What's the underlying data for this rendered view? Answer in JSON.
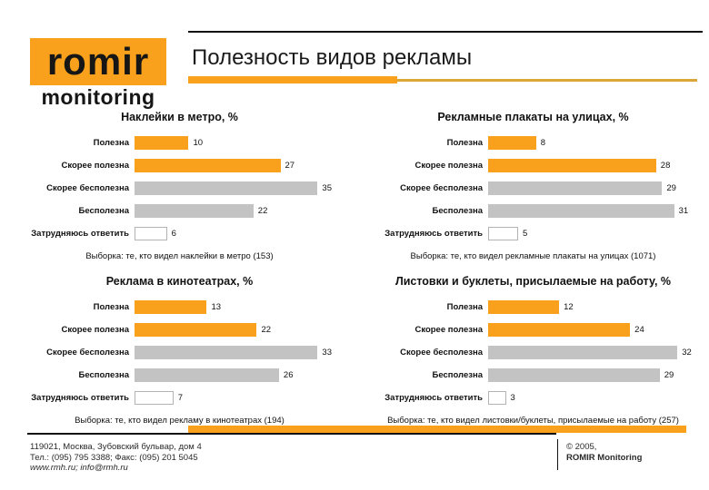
{
  "slide": {
    "logo": {
      "brand": "romir",
      "sub_brand": "monitoring"
    },
    "title": "Полезность видов рекламы",
    "theme": {
      "orange": "#F9A11C",
      "gray": "#C3C3C3",
      "white": "#FFFFFF",
      "text": "#1A1A1A"
    },
    "footer": {
      "address_line1": "119021, Москва, Зубовский бульвар, дом 4",
      "address_line2": "Тел.: (095) 795 3388; Факс: (095) 201 5045",
      "address_line3": "www.rmh.ru; info@rmh.ru",
      "copyright_line1": "© 2005,",
      "copyright_line2": "ROMIR Monitoring"
    }
  },
  "chart_data": [
    {
      "type": "bar",
      "orientation": "horizontal",
      "title": "Наклейки в метро, %",
      "categories": [
        "Полезна",
        "Скорее полезна",
        "Скорее бесполезна",
        "Бесполезна",
        "Затрудняюсь ответить"
      ],
      "values": [
        10,
        27,
        35,
        22,
        6
      ],
      "bar_colors": [
        "orange",
        "orange",
        "gray",
        "gray",
        "white"
      ],
      "xlim": [
        0,
        36.5
      ],
      "grid": false,
      "legend": false,
      "caption": "Выборка: те, кто видел наклейки в метро (153)"
    },
    {
      "type": "bar",
      "orientation": "horizontal",
      "title": "Рекламные плакаты на улицах, %",
      "categories": [
        "Полезна",
        "Скорее полезна",
        "Скорее бесполезна",
        "Бесполезна",
        "Затрудняюсь ответить"
      ],
      "values": [
        8,
        28,
        29,
        31,
        5
      ],
      "bar_colors": [
        "orange",
        "orange",
        "gray",
        "gray",
        "white"
      ],
      "xlim": [
        0,
        35
      ],
      "grid": false,
      "legend": false,
      "caption": "Выборка: те, кто видел рекламные плакаты на улицах (1071)"
    },
    {
      "type": "bar",
      "orientation": "horizontal",
      "title": "Реклама в кинотеатрах, %",
      "categories": [
        "Полезна",
        "Скорее полезна",
        "Скорее бесполезна",
        "Бесполезна",
        "Затрудняюсь ответить"
      ],
      "values": [
        13,
        22,
        33,
        26,
        7
      ],
      "bar_colors": [
        "orange",
        "orange",
        "gray",
        "gray",
        "white"
      ],
      "xlim": [
        0,
        35.5
      ],
      "grid": false,
      "legend": false,
      "caption": "Выборка: те, кто видел рекламу в кинотеатрах (194)"
    },
    {
      "type": "bar",
      "orientation": "horizontal",
      "title": "Листовки и буклеты, присылаемые на работу, %",
      "categories": [
        "Полезна",
        "Скорее полезна",
        "Скорее бесполезна",
        "Бесполезна",
        "Затрудняюсь ответить"
      ],
      "values": [
        12,
        24,
        32,
        29,
        3
      ],
      "bar_colors": [
        "orange",
        "orange",
        "gray",
        "gray",
        "white"
      ],
      "xlim": [
        0,
        35.5
      ],
      "grid": false,
      "legend": false,
      "caption": "Выборка: те, кто видел листовки/буклеты, присылаемые на работу (257)"
    }
  ]
}
